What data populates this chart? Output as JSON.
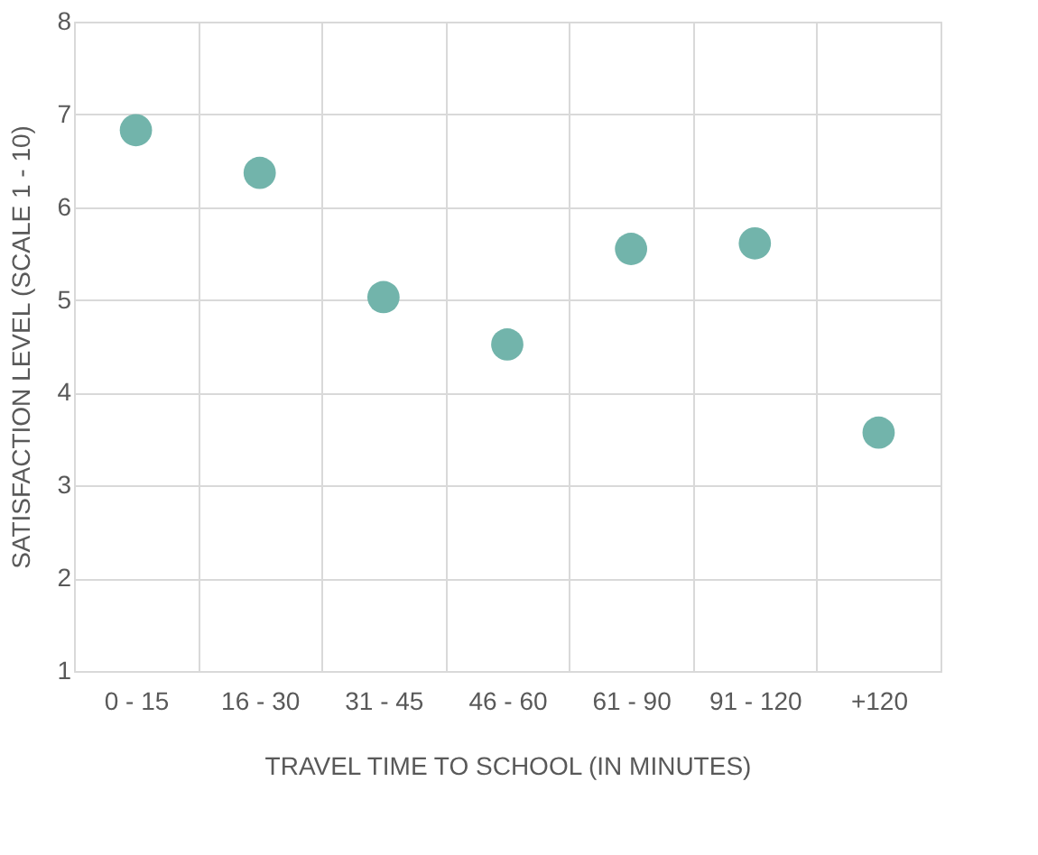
{
  "chart_data": {
    "type": "scatter",
    "xlabel": "TRAVEL TIME TO SCHOOL (IN MINUTES)",
    "ylabel": "SATISFACTION LEVEL (SCALE 1 - 10)",
    "categories": [
      "0 - 15",
      "16 - 30",
      "31 - 45",
      "46 - 60",
      "61 - 90",
      "91 - 120",
      "+120"
    ],
    "series": [
      {
        "color": "#72b4ab",
        "values": [
          6.83,
          6.37,
          5.03,
          4.52,
          5.55,
          5.61,
          3.57
        ]
      }
    ],
    "ylim": [
      1,
      8
    ],
    "yticks": [
      1,
      2,
      3,
      4,
      5,
      6,
      7,
      8
    ],
    "grid": true,
    "marker": "circle"
  }
}
